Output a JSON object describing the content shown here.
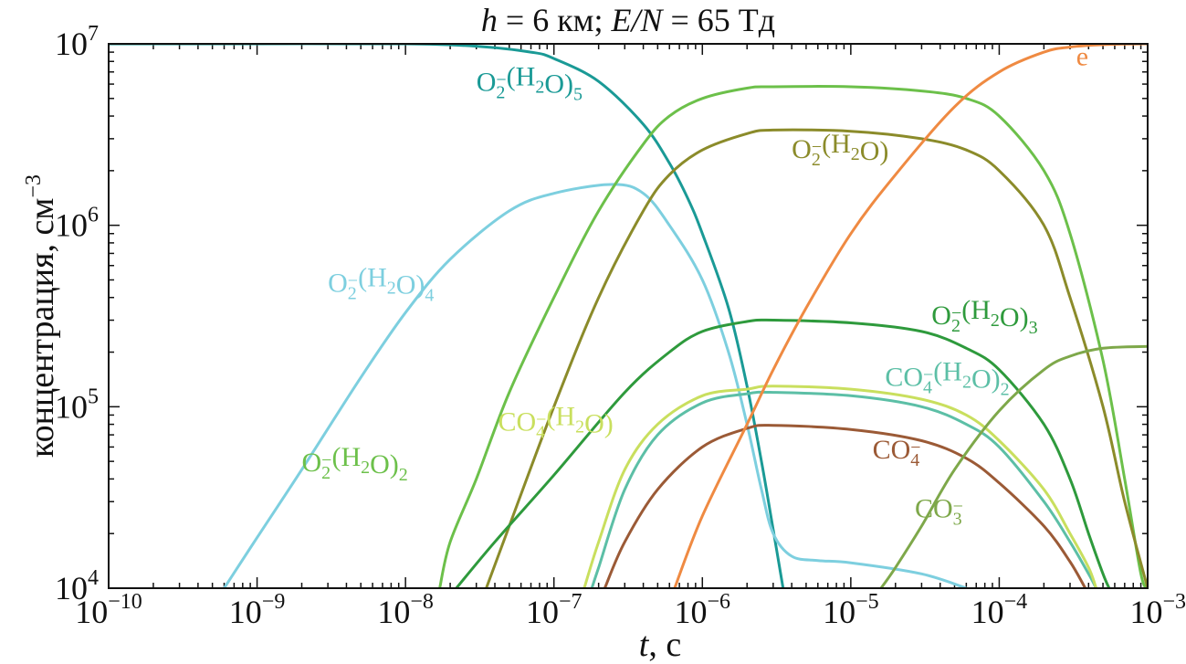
{
  "chart_data": {
    "type": "line",
    "title": "h = 6 км; E/N = 65 Тд",
    "title_parts": {
      "h": "h",
      "eq1": " = 6 км; ",
      "EN": "E/N",
      "eq2": " = 65 Тд"
    },
    "xlabel": "t, с",
    "xlabel_parts": {
      "t": "t",
      "rest": ", с"
    },
    "ylabel": "концентрация, см",
    "ylabel_sup": "−3",
    "x_scale": "log",
    "y_scale": "log",
    "xlim": [
      1e-10,
      0.001
    ],
    "ylim": [
      10000.0,
      10000000.0
    ],
    "grid": false,
    "legend": "inline labels",
    "x_ticks": [
      {
        "base": "10",
        "exp": "−10",
        "value": 1e-10
      },
      {
        "base": "10",
        "exp": "−9",
        "value": 1e-09
      },
      {
        "base": "10",
        "exp": "−8",
        "value": 1e-08
      },
      {
        "base": "10",
        "exp": "−7",
        "value": 1e-07
      },
      {
        "base": "10",
        "exp": "−6",
        "value": 1e-06
      },
      {
        "base": "10",
        "exp": "−5",
        "value": 1e-05
      },
      {
        "base": "10",
        "exp": "−4",
        "value": 0.0001
      },
      {
        "base": "10",
        "exp": "−3",
        "value": 0.001
      }
    ],
    "y_ticks": [
      {
        "base": "10",
        "exp": "4",
        "value": 10000.0
      },
      {
        "base": "10",
        "exp": "5",
        "value": 100000.0
      },
      {
        "base": "10",
        "exp": "6",
        "value": 1000000.0
      },
      {
        "base": "10",
        "exp": "7",
        "value": 10000000.0
      }
    ],
    "series": [
      {
        "name": "O2−(H2O)5",
        "label": [
          {
            "t": "O"
          },
          {
            "t": "2",
            "s": "sub"
          },
          {
            "t": "−",
            "s": "sup"
          },
          {
            "t": "(H"
          },
          {
            "t": "2",
            "s": "sub"
          },
          {
            "t": "O)"
          },
          {
            "t": "5",
            "s": "sub"
          }
        ],
        "color": "#1a9a96",
        "label_at": [
          3e-08,
          5500000.0
        ],
        "points": [
          [
            1e-10,
            10000000.0
          ],
          [
            1e-09,
            10000000.0
          ],
          [
            1e-08,
            10000000.0
          ],
          [
            3e-08,
            9700000.0
          ],
          [
            7e-08,
            9000000.0
          ],
          [
            1e-07,
            8300000.0
          ],
          [
            2e-07,
            6200000.0
          ],
          [
            4e-07,
            3600000.0
          ],
          [
            6e-07,
            2200000.0
          ],
          [
            8e-07,
            1400000.0
          ],
          [
            1e-06,
            900000.0
          ],
          [
            1.5e-06,
            350000.0
          ],
          [
            2e-06,
            130000.0
          ],
          [
            2.5e-06,
            50000.0
          ],
          [
            3e-06,
            21000.0
          ],
          [
            3.5e-06,
            10000.0
          ]
        ]
      },
      {
        "name": "O2−(H2O)4",
        "label": [
          {
            "t": "O"
          },
          {
            "t": "2",
            "s": "sub"
          },
          {
            "t": "−",
            "s": "sup"
          },
          {
            "t": "(H"
          },
          {
            "t": "2",
            "s": "sub"
          },
          {
            "t": "O)"
          },
          {
            "t": "4",
            "s": "sub"
          }
        ],
        "color": "#7dcfdf",
        "label_at": [
          3e-09,
          430000.0
        ],
        "points": [
          [
            6e-10,
            10000.0
          ],
          [
            1e-09,
            19000.0
          ],
          [
            2e-09,
            45000.0
          ],
          [
            5e-09,
            145000.0
          ],
          [
            1e-08,
            330000.0
          ],
          [
            2e-08,
            650000.0
          ],
          [
            5e-08,
            1200000.0
          ],
          [
            1e-07,
            1500000.0
          ],
          [
            2.5e-07,
            1680000.0
          ],
          [
            4e-07,
            1500000.0
          ],
          [
            6e-07,
            1000000.0
          ],
          [
            1e-06,
            500000.0
          ],
          [
            1.5e-06,
            200000.0
          ],
          [
            2e-06,
            80000.0
          ],
          [
            2.5e-06,
            35000.0
          ],
          [
            3e-06,
            20000.0
          ],
          [
            4e-06,
            15000.0
          ],
          [
            6e-06,
            14200.0
          ],
          [
            1e-05,
            13800.0
          ],
          [
            3e-05,
            12000.0
          ],
          [
            6e-05,
            10000.0
          ]
        ]
      },
      {
        "name": "O2−(H2O)2",
        "label": [
          {
            "t": "O"
          },
          {
            "t": "2",
            "s": "sub"
          },
          {
            "t": "−",
            "s": "sup"
          },
          {
            "t": "(H"
          },
          {
            "t": "2",
            "s": "sub"
          },
          {
            "t": "O)"
          },
          {
            "t": "2",
            "s": "sub"
          }
        ],
        "color": "#6cc04a",
        "label_at": [
          2e-09,
          44000.0
        ],
        "points": [
          [
            1.7e-08,
            10000.0
          ],
          [
            2e-08,
            18000.0
          ],
          [
            3e-08,
            40000.0
          ],
          [
            5e-08,
            120000.0
          ],
          [
            1e-07,
            400000.0
          ],
          [
            2e-07,
            1200000.0
          ],
          [
            4e-07,
            2800000.0
          ],
          [
            6e-07,
            4000000.0
          ],
          [
            1e-06,
            5000000.0
          ],
          [
            2e-06,
            5700000.0
          ],
          [
            3e-06,
            5800000.0
          ],
          [
            1e-05,
            5800000.0
          ],
          [
            3e-05,
            5500000.0
          ],
          [
            6e-05,
            5000000.0
          ],
          [
            0.0001,
            4000000.0
          ],
          [
            0.0002,
            2000000.0
          ],
          [
            0.0003,
            900000.0
          ],
          [
            0.0005,
            180000.0
          ],
          [
            0.0007,
            40000.0
          ],
          [
            0.0009,
            12000.0
          ],
          [
            0.001,
            10000.0
          ]
        ]
      },
      {
        "name": "O2−(H2O)",
        "label": [
          {
            "t": "O"
          },
          {
            "t": "2",
            "s": "sub"
          },
          {
            "t": "−",
            "s": "sup"
          },
          {
            "t": "(H"
          },
          {
            "t": "2",
            "s": "sub"
          },
          {
            "t": "O)"
          }
        ],
        "color": "#8b8b2a",
        "label_at": [
          4e-06,
          2350000.0
        ],
        "points": [
          [
            3.5e-08,
            10000.0
          ],
          [
            5e-08,
            22000.0
          ],
          [
            1e-07,
            100000.0
          ],
          [
            2e-07,
            400000.0
          ],
          [
            4e-07,
            1200000.0
          ],
          [
            6e-07,
            1900000.0
          ],
          [
            1e-06,
            2600000.0
          ],
          [
            2e-06,
            3200000.0
          ],
          [
            3e-06,
            3350000.0
          ],
          [
            1e-05,
            3300000.0
          ],
          [
            3e-05,
            3000000.0
          ],
          [
            6e-05,
            2600000.0
          ],
          [
            0.0001,
            2000000.0
          ],
          [
            0.0002,
            1000000.0
          ],
          [
            0.0003,
            400000.0
          ],
          [
            0.0005,
            100000.0
          ],
          [
            0.0007,
            30000.0
          ],
          [
            0.001,
            10000.0
          ]
        ]
      },
      {
        "name": "O2−(H2O)3",
        "label": [
          {
            "t": "O"
          },
          {
            "t": "2",
            "s": "sub"
          },
          {
            "t": "−",
            "s": "sup"
          },
          {
            "t": "(H"
          },
          {
            "t": "2",
            "s": "sub"
          },
          {
            "t": "O)"
          },
          {
            "t": "3",
            "s": "sub"
          }
        ],
        "color": "#2e9a3c",
        "label_at": [
          3.5e-05,
          285000.0
        ],
        "points": [
          [
            2.2e-08,
            10000.0
          ],
          [
            4e-08,
            18000.0
          ],
          [
            1e-07,
            42000.0
          ],
          [
            3e-07,
            120000.0
          ],
          [
            6e-07,
            200000.0
          ],
          [
            1e-06,
            260000.0
          ],
          [
            2e-06,
            295000.0
          ],
          [
            3e-06,
            300000.0
          ],
          [
            1e-05,
            290000.0
          ],
          [
            3e-05,
            260000.0
          ],
          [
            6e-05,
            210000.0
          ],
          [
            0.0001,
            160000.0
          ],
          [
            0.0002,
            80000.0
          ],
          [
            0.0003,
            40000.0
          ],
          [
            0.0004,
            20000.0
          ],
          [
            0.0005,
            12000.0
          ],
          [
            0.00055,
            10000.0
          ]
        ]
      },
      {
        "name": "CO4−(H2O)2",
        "label": [
          {
            "t": "CO"
          },
          {
            "t": "4",
            "s": "sub"
          },
          {
            "t": "−",
            "s": "sup"
          },
          {
            "t": "(H"
          },
          {
            "t": "2",
            "s": "sub"
          },
          {
            "t": "O)"
          },
          {
            "t": "2",
            "s": "sub"
          }
        ],
        "color": "#5cbfa6",
        "label_at": [
          1.7e-05,
          130000.0
        ],
        "points": [
          [
            1.8e-07,
            10000.0
          ],
          [
            2e-07,
            13000.0
          ],
          [
            3e-07,
            35000.0
          ],
          [
            5e-07,
            70000.0
          ],
          [
            1e-06,
            105000.0
          ],
          [
            2e-06,
            118000.0
          ],
          [
            3e-06,
            120000.0
          ],
          [
            1e-05,
            115000.0
          ],
          [
            3e-05,
            100000.0
          ],
          [
            6e-05,
            80000.0
          ],
          [
            0.0001,
            60000.0
          ],
          [
            0.0002,
            30000.0
          ],
          [
            0.0003,
            18000.0
          ],
          [
            0.0004,
            12000.0
          ],
          [
            0.00045,
            10000.0
          ]
        ]
      },
      {
        "name": "CO4−(H2O)",
        "label": [
          {
            "t": "CO"
          },
          {
            "t": "4",
            "s": "sub"
          },
          {
            "t": "−",
            "s": "sup"
          },
          {
            "t": "(H"
          },
          {
            "t": "2",
            "s": "sub"
          },
          {
            "t": "O)"
          }
        ],
        "color": "#c9df5e",
        "label_at": [
          4.2e-08,
          74000.0
        ],
        "points": [
          [
            1.6e-07,
            10000.0
          ],
          [
            2e-07,
            18000.0
          ],
          [
            3e-07,
            45000.0
          ],
          [
            5e-07,
            80000.0
          ],
          [
            1e-06,
            115000.0
          ],
          [
            2e-06,
            125000.0
          ],
          [
            3e-06,
            130000.0
          ],
          [
            1e-05,
            125000.0
          ],
          [
            3e-05,
            110000.0
          ],
          [
            6e-05,
            90000.0
          ],
          [
            0.0001,
            65000.0
          ],
          [
            0.0002,
            35000.0
          ],
          [
            0.0003,
            20000.0
          ],
          [
            0.0004,
            13000.0
          ],
          [
            0.00045,
            10000.0
          ]
        ]
      },
      {
        "name": "CO4−",
        "label": [
          {
            "t": "CO"
          },
          {
            "t": "4",
            "s": "sub"
          },
          {
            "t": "−",
            "s": "sup"
          }
        ],
        "color": "#9b5a36",
        "label_at": [
          1.4e-05,
          52000.0
        ],
        "points": [
          [
            2.2e-07,
            10000.0
          ],
          [
            3e-07,
            18000.0
          ],
          [
            5e-07,
            35000.0
          ],
          [
            1e-06,
            60000.0
          ],
          [
            2e-06,
            76000.0
          ],
          [
            3e-06,
            79000.0
          ],
          [
            1e-05,
            75000.0
          ],
          [
            3e-05,
            65000.0
          ],
          [
            6e-05,
            52000.0
          ],
          [
            0.0001,
            38000.0
          ],
          [
            0.0002,
            22000.0
          ],
          [
            0.0003,
            14000.0
          ],
          [
            0.00038,
            10000.0
          ]
        ]
      },
      {
        "name": "CO3−",
        "label": [
          {
            "t": "CO"
          },
          {
            "t": "3",
            "s": "sub"
          },
          {
            "t": "−",
            "s": "sup"
          }
        ],
        "color": "#7ea84a",
        "label_at": [
          2.7e-05,
          24500.0
        ],
        "points": [
          [
            1.6e-05,
            10000.0
          ],
          [
            2e-05,
            13000.0
          ],
          [
            3e-05,
            22000.0
          ],
          [
            5e-05,
            45000.0
          ],
          [
            0.0001,
            95000.0
          ],
          [
            0.0002,
            160000.0
          ],
          [
            0.0003,
            190000.0
          ],
          [
            0.0005,
            210000.0
          ],
          [
            0.001,
            215000.0
          ]
        ]
      },
      {
        "name": "e",
        "label": [
          {
            "t": "e"
          }
        ],
        "color": "#ef8a42",
        "label_at": [
          0.00033,
          7600000.0
        ],
        "points": [
          [
            6.5e-07,
            10000.0
          ],
          [
            1e-06,
            25000.0
          ],
          [
            2e-06,
            80000.0
          ],
          [
            3e-06,
            160000.0
          ],
          [
            5e-06,
            350000.0
          ],
          [
            1e-05,
            900000.0
          ],
          [
            2e-05,
            1900000.0
          ],
          [
            5e-05,
            4500000.0
          ],
          [
            0.0001,
            7000000.0
          ],
          [
            0.0002,
            9000000.0
          ],
          [
            0.0003,
            9600000.0
          ],
          [
            0.0005,
            9900000.0
          ],
          [
            0.001,
            10000000.0
          ]
        ]
      }
    ]
  }
}
